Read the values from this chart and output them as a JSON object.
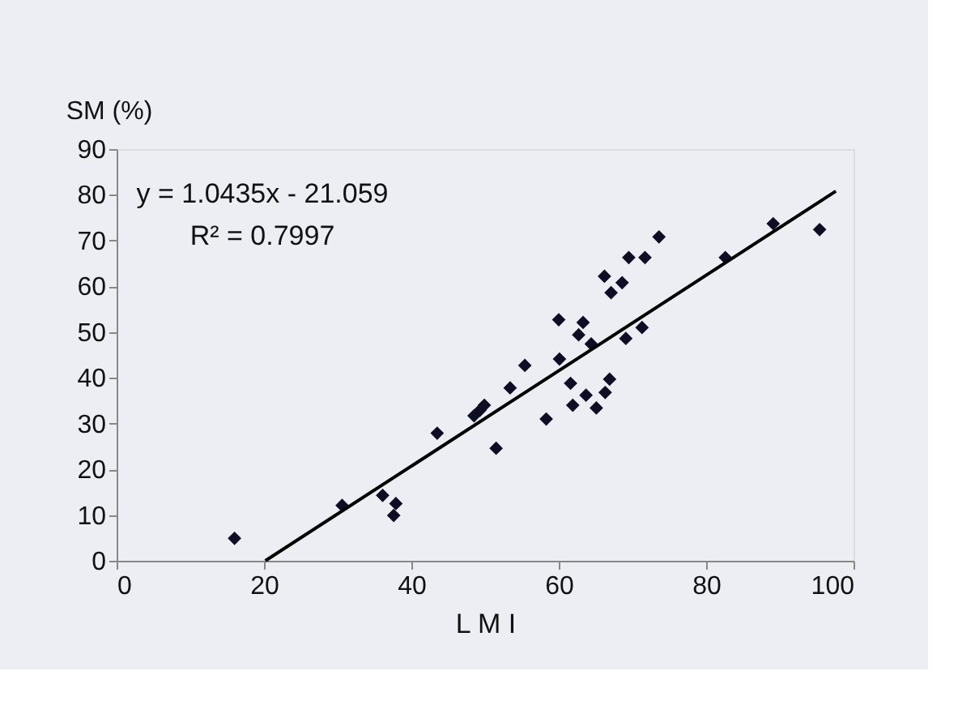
{
  "chart_data": {
    "type": "scatter",
    "xlabel": "L M I",
    "ylabel": "SM (%)",
    "xlim": [
      0,
      100
    ],
    "xticks": [
      0,
      20,
      40,
      60,
      80,
      100
    ],
    "ylim": [
      0,
      90
    ],
    "yticks": [
      0,
      10,
      20,
      30,
      40,
      50,
      60,
      70,
      80,
      90
    ],
    "grid": false,
    "marker": "diamond",
    "annotations": [
      "y = 1.0435x - 21.059",
      "R² = 0.7997"
    ],
    "series": [
      {
        "color": "#0d0d26",
        "x": [
          16.0,
          30.6,
          36.1,
          37.9,
          37.6,
          43.5,
          48.5,
          49.9,
          49.3,
          51.5,
          53.4,
          55.4,
          58.3,
          60.0,
          60.1,
          61.6,
          61.9,
          62.7,
          63.3,
          63.7,
          64.4,
          65.1,
          66.3,
          66.9,
          66.2,
          67.1,
          68.6,
          69.5,
          71.7,
          69.1,
          71.3,
          73.6,
          82.6,
          89.1,
          95.4
        ],
        "values": [
          4.9,
          12.1,
          14.3,
          12.5,
          9.9,
          27.9,
          31.7,
          34.0,
          32.9,
          24.6,
          37.8,
          42.7,
          31.0,
          52.7,
          44.1,
          38.8,
          34.0,
          49.4,
          52.1,
          36.2,
          47.4,
          33.4,
          36.8,
          39.7,
          62.2,
          58.6,
          60.8,
          66.3,
          66.3,
          48.6,
          51.0,
          70.8,
          66.3,
          73.7,
          72.4
        ]
      },
      {
        "type": "line",
        "color": "#000000",
        "marker": "none",
        "x": [
          20.18,
          97.6
        ],
        "values": [
          0.0,
          80.8
        ]
      }
    ]
  }
}
